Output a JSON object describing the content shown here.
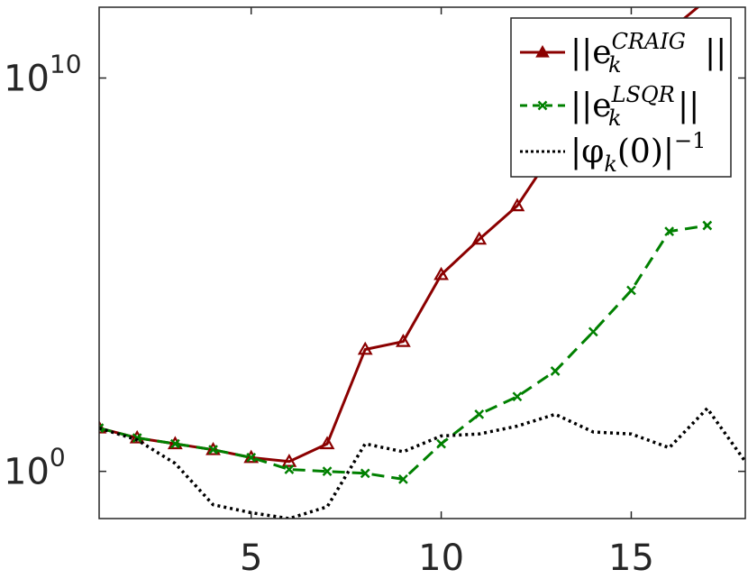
{
  "chart_data": {
    "type": "line",
    "title": "",
    "xlabel": "",
    "ylabel": "",
    "xlim": [
      1,
      18
    ],
    "ylim_log10": [
      -1.2,
      11.8
    ],
    "y_scale": "log",
    "grid": false,
    "legend_placement": "top-right",
    "x_ticks": [
      5,
      10,
      15
    ],
    "x_tick_labels": [
      "5",
      "10",
      "15"
    ],
    "y_ticks": [
      0,
      10
    ],
    "y_tick_labels": [
      {
        "base": "10",
        "exp": "0"
      },
      {
        "base": "10",
        "exp": "10"
      }
    ],
    "series": [
      {
        "label_base": "||e",
        "label_sub": "k",
        "label_sup": "CRAIG",
        "label_tail": "||",
        "color": "#8b0000",
        "style": "solid",
        "marker": "triangle",
        "x": [
          1,
          2,
          3,
          4,
          5,
          6,
          7,
          8,
          9,
          10,
          11,
          12,
          13,
          14,
          15,
          16,
          17
        ],
        "log10_y": [
          1.1,
          0.85,
          0.7,
          0.55,
          0.35,
          0.25,
          0.7,
          3.1,
          3.3,
          5.0,
          5.9,
          6.75,
          8.2,
          9.6,
          10.5,
          11.2,
          12.0
        ]
      },
      {
        "label_base": "||e",
        "label_sub": "k",
        "label_sup": "LSQR",
        "label_tail": "||",
        "color": "#008000",
        "style": "dashed",
        "marker": "x",
        "x": [
          1,
          2,
          3,
          4,
          5,
          6,
          7,
          8,
          9,
          10,
          11,
          12,
          13,
          14,
          15,
          16,
          17
        ],
        "log10_y": [
          1.1,
          0.85,
          0.7,
          0.55,
          0.35,
          0.05,
          0.0,
          -0.05,
          -0.2,
          0.7,
          1.45,
          1.9,
          2.55,
          3.55,
          4.6,
          6.1,
          6.25
        ]
      },
      {
        "label_base": "|φ",
        "label_sub": "k",
        "label_mid": "(0)|",
        "label_sup": "−1",
        "color": "#000000",
        "style": "dotted",
        "marker": "none",
        "x": [
          1,
          2,
          3,
          4,
          5,
          6,
          7,
          8,
          9,
          10,
          11,
          12,
          13,
          14,
          15,
          16,
          17,
          18
        ],
        "log10_y": [
          1.1,
          0.8,
          0.2,
          -0.85,
          -1.05,
          -1.2,
          -0.9,
          0.7,
          0.5,
          0.9,
          0.95,
          1.15,
          1.45,
          1.0,
          0.95,
          0.6,
          1.6,
          0.25
        ]
      }
    ]
  }
}
